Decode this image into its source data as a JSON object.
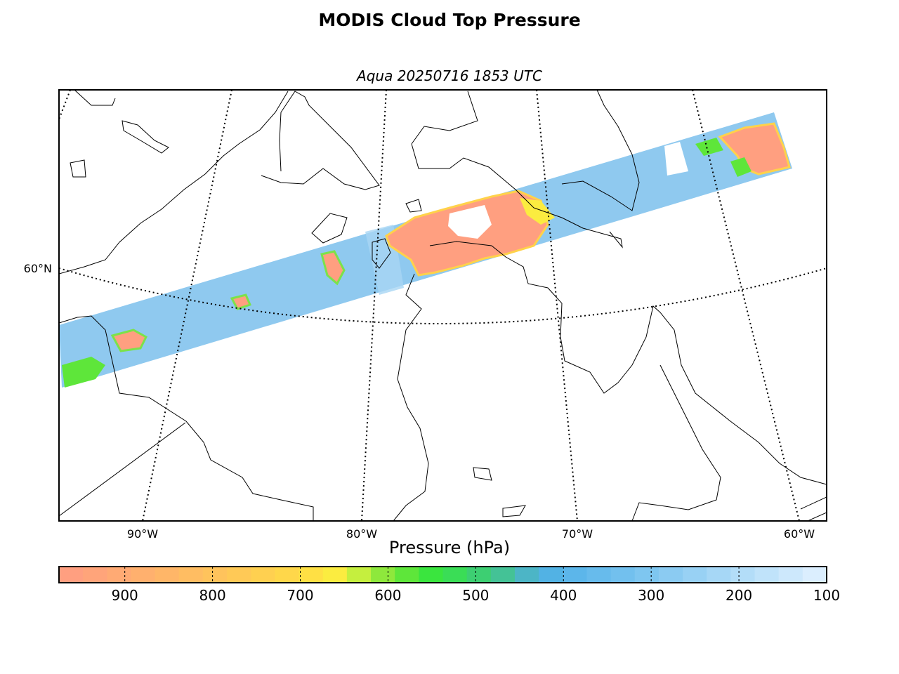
{
  "title": "MODIS Cloud Top Pressure",
  "subtitle": "Aqua 20250716 1853 UTC",
  "map": {
    "lat_labels": [
      "60°N"
    ],
    "lon_labels": [
      "90°W",
      "80°W",
      "70°W",
      "60°W"
    ]
  },
  "colorbar": {
    "label": "Pressure (hPa)",
    "min": 100,
    "max": 975,
    "ticks": [
      "900",
      "800",
      "700",
      "600",
      "500",
      "400",
      "300",
      "200",
      "100"
    ],
    "tick_values": [
      900,
      800,
      700,
      600,
      500,
      400,
      300,
      200,
      100
    ],
    "colors": [
      "#ff9f80",
      "#ffa47a",
      "#ffaa74",
      "#ffb06e",
      "#ffb668",
      "#ffbd62",
      "#ffc35c",
      "#ffc956",
      "#ffd050",
      "#ffd74a",
      "#ffe044",
      "#fbec40",
      "#c5ef3e",
      "#8ee83c",
      "#5ee63a",
      "#3ae53e",
      "#3add56",
      "#3dcf72",
      "#44c296",
      "#4cb5c6",
      "#52b2e4",
      "#5cb6ea",
      "#67bbec",
      "#72c0ee",
      "#7ec6f0",
      "#8bcbf2",
      "#98d1f4",
      "#a6d7f6",
      "#b3ddf8",
      "#c0e3fa",
      "#cde8fc",
      "#dbeefe"
    ]
  }
}
